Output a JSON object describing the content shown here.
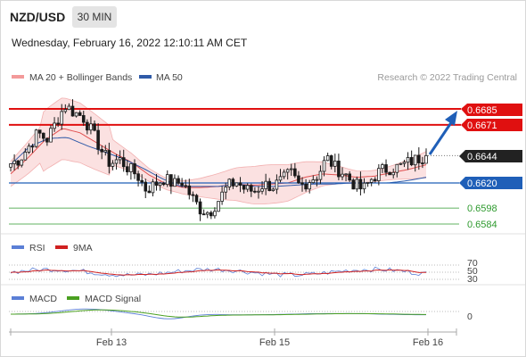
{
  "header": {
    "pair": "NZD/USD",
    "timeframe": "30 MIN",
    "datetime": "Wednesday, February 16, 2022 12:10:11 AM CET"
  },
  "legend": {
    "ma20": "MA 20 + Bollinger Bands",
    "ma50": "MA 50",
    "credit": "Research © 2022 Trading Central"
  },
  "colors": {
    "candle_up": "#1a1a1a",
    "candle_down": "#1a1a1a",
    "ma20": "#e05050",
    "bollinger_fill": "#fadada",
    "ma50": "#2f5aa8",
    "resistance": "#e01010",
    "pivot": "#1f5fb8",
    "support": "#2e9a2e",
    "rsi": "#5b7fd6",
    "rsi_ma": "#d02020",
    "macd": "#5b7fd6",
    "macd_signal": "#4aa020",
    "arrow": "#1f5fb8",
    "current_price_box": "#222222"
  },
  "chart_data": [
    {
      "type": "candlestick",
      "title": "NZD/USD 30 MIN",
      "price_scale": [
        0.657,
        0.6705
      ],
      "x_ticks": [
        "Feb 13",
        "Feb 15",
        "Feb 16"
      ],
      "levels": [
        {
          "label": "0.6685",
          "value": 0.6685,
          "role": "resistance",
          "color": "#e01010"
        },
        {
          "label": "0.6671",
          "value": 0.6671,
          "role": "resistance",
          "color": "#e01010"
        },
        {
          "label": "0.6644",
          "value": 0.6644,
          "role": "current",
          "color": "#222222"
        },
        {
          "label": "0.6620",
          "value": 0.662,
          "role": "pivot",
          "color": "#1f5fb8"
        },
        {
          "label": "0.6598",
          "value": 0.6598,
          "role": "support",
          "color": "#2e9a2e"
        },
        {
          "label": "0.6584",
          "value": 0.6584,
          "role": "support",
          "color": "#2e9a2e"
        }
      ],
      "close_path": [
        0.6637,
        0.6641,
        0.6652,
        0.6664,
        0.6658,
        0.6673,
        0.6688,
        0.6682,
        0.6678,
        0.6665,
        0.6649,
        0.6637,
        0.6641,
        0.6633,
        0.6627,
        0.6614,
        0.6619,
        0.6624,
        0.6619,
        0.6621,
        0.6608,
        0.6597,
        0.6594,
        0.6605,
        0.6617,
        0.6621,
        0.6614,
        0.6613,
        0.6619,
        0.6617,
        0.6622,
        0.6629,
        0.6617,
        0.6622,
        0.6627,
        0.6642,
        0.6633,
        0.6628,
        0.6619,
        0.6614,
        0.6624,
        0.6631,
        0.6633,
        0.6634,
        0.6638,
        0.6641,
        0.6644
      ],
      "ma20_path": [
        0.6628,
        0.6642,
        0.6658,
        0.6668,
        0.6664,
        0.6655,
        0.6646,
        0.6638,
        0.6627,
        0.6619,
        0.6616,
        0.6616,
        0.6617,
        0.6619,
        0.6618,
        0.6619,
        0.662,
        0.6625,
        0.6628,
        0.6627,
        0.6625,
        0.6626,
        0.6629,
        0.6632,
        0.6636
      ],
      "ma50_path": [
        0.6636,
        0.6652,
        0.6659,
        0.666,
        0.6653,
        0.6647,
        0.6641,
        0.6633,
        0.6624,
        0.6617,
        0.6617,
        0.6617,
        0.6619,
        0.6617,
        0.6617,
        0.6618,
        0.6619,
        0.6619,
        0.662,
        0.662,
        0.662,
        0.6622,
        0.6625
      ],
      "forecast": {
        "from": 0.6644,
        "to": 0.6685
      }
    },
    {
      "type": "line",
      "title": "RSI",
      "series": [
        {
          "name": "RSI"
        },
        {
          "name": "9MA"
        }
      ],
      "y_ticks": [
        70,
        50,
        30
      ]
    },
    {
      "type": "line",
      "title": "MACD",
      "series": [
        {
          "name": "MACD"
        },
        {
          "name": "MACD Signal"
        }
      ],
      "y_ticks": [
        0
      ]
    }
  ],
  "rsi_panel": {
    "legend_rsi": "RSI",
    "legend_ma": "9MA",
    "tick_70": "70",
    "tick_50": "50",
    "tick_30": "30"
  },
  "macd_panel": {
    "legend_macd": "MACD",
    "legend_signal": "MACD Signal",
    "tick_0": "0"
  },
  "xaxis": {
    "t1": "Feb 13",
    "t2": "Feb 15",
    "t3": "Feb 16"
  }
}
